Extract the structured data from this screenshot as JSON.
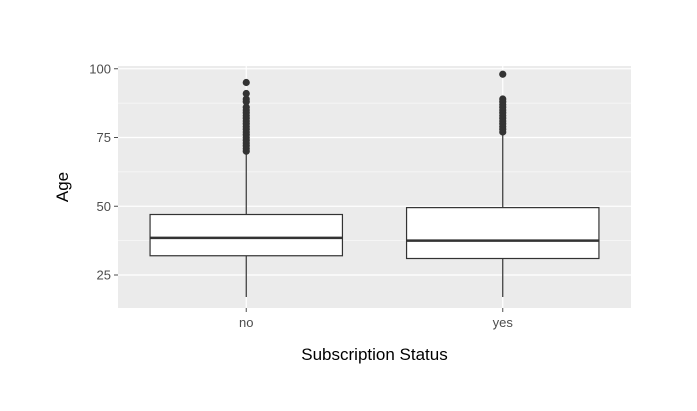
{
  "chart_data": {
    "type": "boxplot",
    "title": "",
    "xlabel": "Subscription Status",
    "ylabel": "Age",
    "categories": [
      "no",
      "yes"
    ],
    "ylim": [
      13,
      101
    ],
    "yticks": [
      25,
      50,
      75,
      100
    ],
    "grid": true,
    "legend": "none",
    "boxes": [
      {
        "category": "no",
        "whisker_low": 17,
        "q1": 32,
        "median": 38.5,
        "q3": 47,
        "whisker_high": 69,
        "outliers": [
          70,
          71,
          72,
          73,
          74,
          75,
          76,
          77,
          78,
          79,
          80,
          81,
          82,
          83,
          84,
          85,
          86,
          88,
          89,
          91,
          95
        ]
      },
      {
        "category": "yes",
        "whisker_low": 17,
        "q1": 31,
        "median": 37.5,
        "q3": 49.5,
        "whisker_high": 76,
        "outliers": [
          77,
          78,
          79,
          80,
          81,
          82,
          83,
          84,
          85,
          86,
          87,
          88,
          89,
          98
        ]
      }
    ],
    "colors": {
      "panel_background": "#ebebeb",
      "grid_major": "#ffffff",
      "box_fill": "#ffffff",
      "box_stroke": "#333333",
      "outlier_fill": "#333333",
      "tick_color": "#4d4d4d"
    }
  }
}
